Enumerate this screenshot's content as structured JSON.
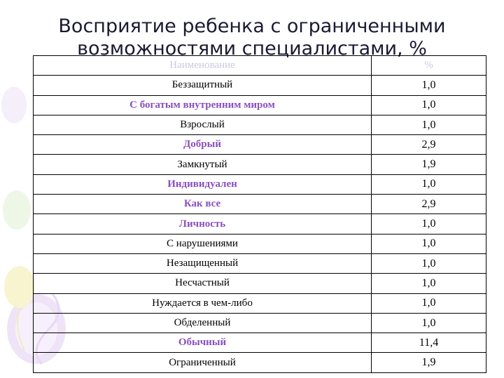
{
  "title_line1": "Восприятие ребенка с ограниченными",
  "title_line2": "возможностями специалистами, %",
  "table": {
    "headers": [
      "Наименование",
      "%"
    ],
    "rows": [
      {
        "name": "Беззащитный",
        "value": "1,0",
        "highlight": false
      },
      {
        "name": "С богатым внутренним миром",
        "value": "1,0",
        "highlight": true
      },
      {
        "name": "Взрослый",
        "value": "1,0",
        "highlight": false
      },
      {
        "name": "Добрый",
        "value": "2,9",
        "highlight": true
      },
      {
        "name": "Замкнутый",
        "value": "1,9",
        "highlight": false
      },
      {
        "name": "Индивидуален",
        "value": "1,0",
        "highlight": true
      },
      {
        "name": "Как все",
        "value": "2,9",
        "highlight": true
      },
      {
        "name": "Личность",
        "value": "1,0",
        "highlight": true
      },
      {
        "name": "С нарушениями",
        "value": "1,0",
        "highlight": false
      },
      {
        "name": "Незащищенный",
        "value": "1,0",
        "highlight": false
      },
      {
        "name": "Несчастный",
        "value": "1,0",
        "highlight": false
      },
      {
        "name": "Нуждается в чем-либо",
        "value": "1,0",
        "highlight": false
      },
      {
        "name": "Обделенный",
        "value": "1,0",
        "highlight": false
      },
      {
        "name": "Обычный",
        "value": "11,4",
        "highlight": true
      },
      {
        "name": "Ограниченный",
        "value": "1,9",
        "highlight": false
      }
    ]
  },
  "colors": {
    "highlight_text": "#8a4fbf",
    "balloon_purple": "#d9c4ee",
    "balloon_yellow": "#f6f0b8",
    "balloon_green": "#dff0cf"
  }
}
